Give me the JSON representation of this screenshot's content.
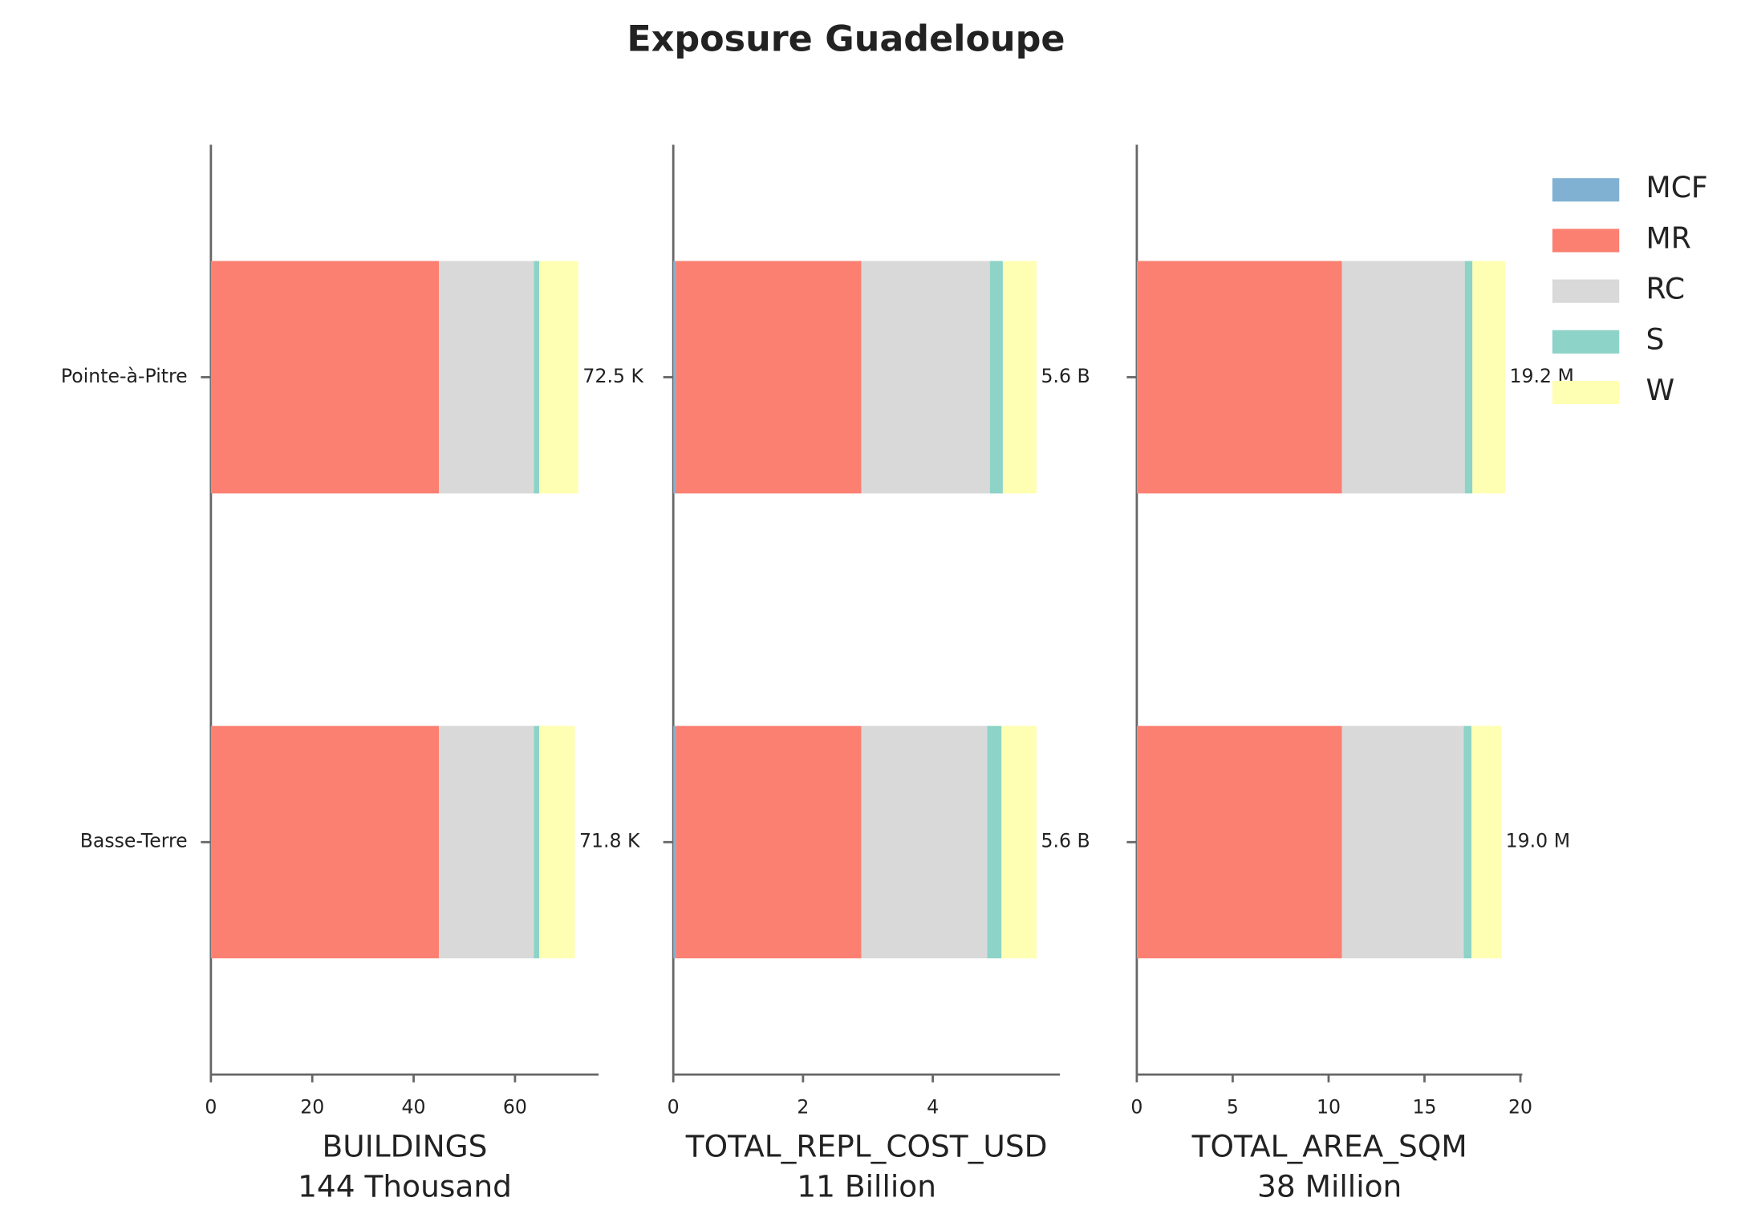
{
  "chart_data": {
    "type": "bar",
    "title": "Exposure Guadeloupe",
    "categories": [
      "Pointe-à-Pitre",
      "Basse-Terre"
    ],
    "ylim": [
      -0.5,
      1.5
    ],
    "legend": "upper right",
    "series": [
      {
        "name": "MCF",
        "color": "#80b1d3"
      },
      {
        "name": "MR",
        "color": "#fb8072"
      },
      {
        "name": "RC",
        "color": "#d9d9d9"
      },
      {
        "name": "S",
        "color": "#8dd3c7"
      },
      {
        "name": "W",
        "color": "#ffffb3"
      }
    ],
    "panels": [
      {
        "xlabel": "BUILDINGS",
        "subtitle": "144 Thousand",
        "xlim": [
          0,
          76.5
        ],
        "xticks": [
          0,
          20,
          40,
          60
        ],
        "values": [
          [
            0.1,
            0.1
          ],
          [
            44.9,
            44.9
          ],
          [
            18.7,
            18.7
          ],
          [
            1.1,
            1.1
          ],
          [
            7.7,
            7.0
          ]
        ],
        "total_labels": [
          "72.5 K",
          "71.8 K"
        ]
      },
      {
        "xlabel": "TOTAL_REPL_COST_USD",
        "subtitle": "11 Billion",
        "xlim": [
          0,
          5.96
        ],
        "xticks": [
          0,
          2,
          4
        ],
        "values": [
          [
            0.04,
            0.04
          ],
          [
            2.86,
            2.86
          ],
          [
            1.98,
            1.94
          ],
          [
            0.2,
            0.22
          ],
          [
            0.52,
            0.54
          ]
        ],
        "total_labels": [
          "5.6 B",
          "5.6 B"
        ]
      },
      {
        "xlabel": "TOTAL_AREA_SQM",
        "subtitle": "38 Million",
        "xlim": [
          0,
          20.1
        ],
        "xticks": [
          0,
          5,
          10,
          15,
          20
        ],
        "values": [
          [
            0.05,
            0.05
          ],
          [
            10.65,
            10.65
          ],
          [
            6.4,
            6.35
          ],
          [
            0.4,
            0.4
          ],
          [
            1.7,
            1.55
          ]
        ],
        "total_labels": [
          "19.2 M",
          "19.0 M"
        ]
      }
    ]
  }
}
